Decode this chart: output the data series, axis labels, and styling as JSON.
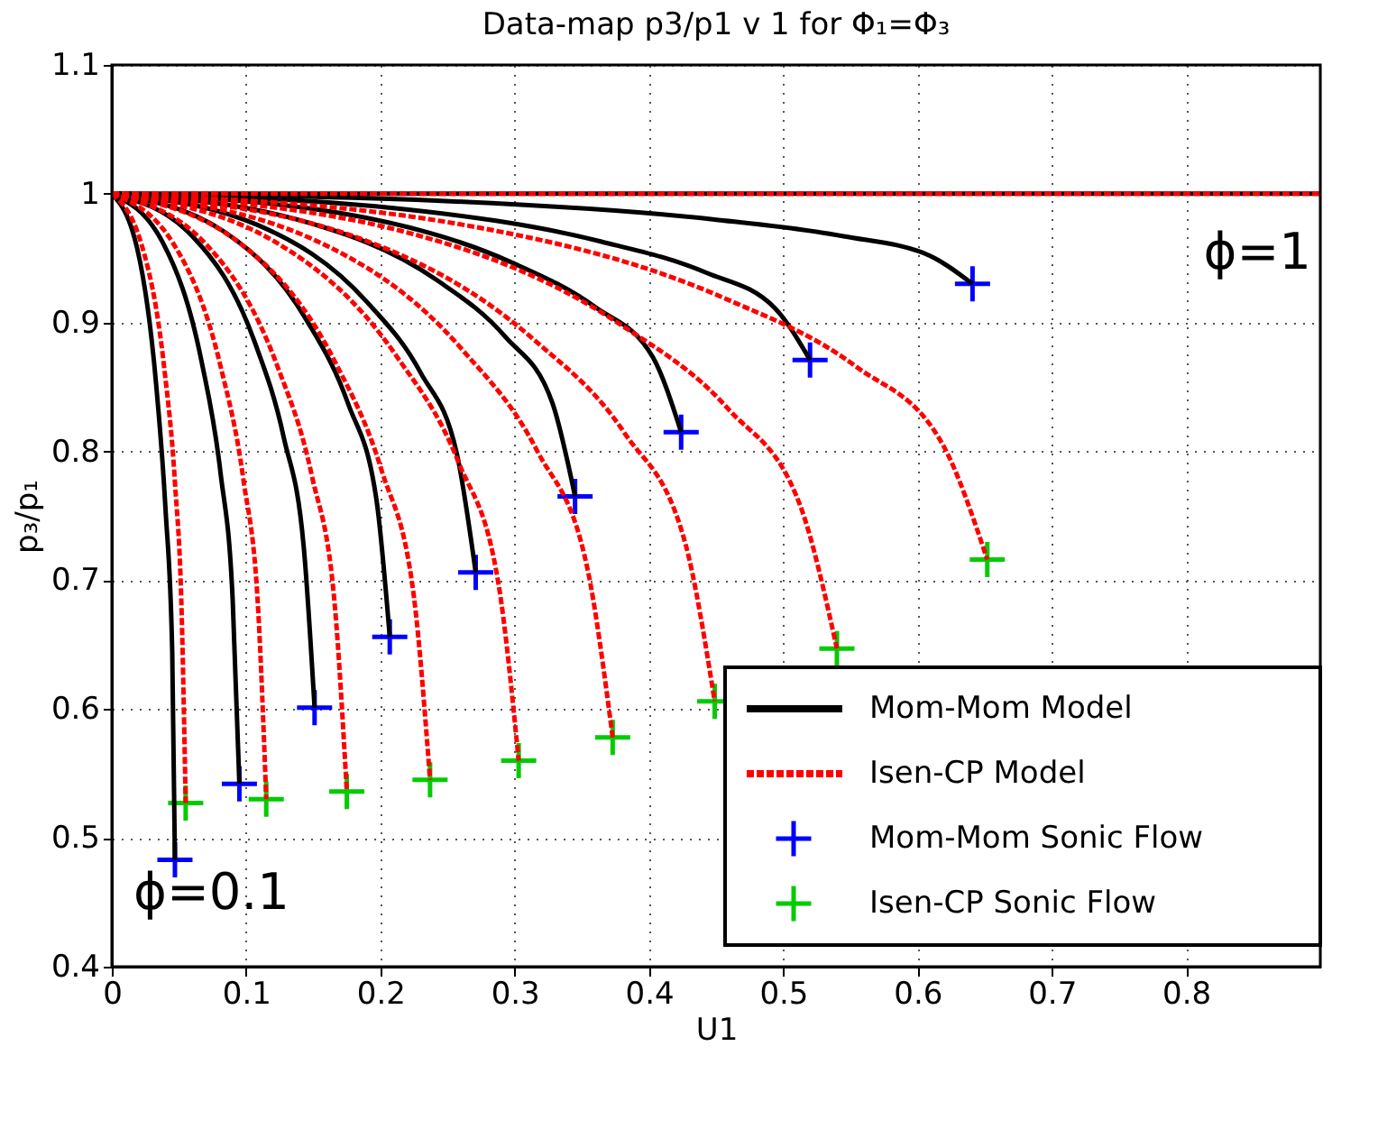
{
  "chart_data": {
    "type": "line",
    "title": "Data-map p3/p1 v 1 for Φ₁=Φ₃",
    "xlabel": "U1",
    "ylabel": "p₃/p₁",
    "xlim": [
      0,
      0.9
    ],
    "ylim": [
      0.4,
      1.1
    ],
    "xticks": [
      0,
      0.1,
      0.2,
      0.3,
      0.4,
      0.5,
      0.6,
      0.7,
      0.8
    ],
    "yticks": [
      0.4,
      0.5,
      0.6,
      0.7,
      0.8,
      0.9,
      1,
      1.1
    ],
    "grid": true,
    "legend": "bottom right",
    "annotations": [
      "ϕ=1",
      "ϕ=0.1"
    ],
    "series": [
      {
        "name": "Mom-Mom Model",
        "line_style": "solid",
        "color": "#000000",
        "x": [
          0,
          0.019,
          0.033,
          0.04,
          0.045,
          0.047
        ],
        "values": [
          1,
          0.957,
          0.852,
          0.755,
          0.644,
          0.483
        ]
      },
      {
        "type": "line",
        "line_style": "solid",
        "color": "#000000",
        "x": [
          0,
          0.038,
          0.067,
          0.081,
          0.09,
          0.095
        ],
        "values": [
          1,
          0.962,
          0.869,
          0.783,
          0.685,
          0.542
        ]
      },
      {
        "type": "line",
        "line_style": "solid",
        "color": "#000000",
        "x": [
          0,
          0.06,
          0.106,
          0.128,
          0.143,
          0.151
        ],
        "values": [
          1,
          0.967,
          0.886,
          0.811,
          0.725,
          0.601
        ]
      },
      {
        "type": "line",
        "line_style": "solid",
        "color": "#000000",
        "x": [
          0,
          0.083,
          0.145,
          0.176,
          0.197,
          0.207
        ],
        "values": [
          1,
          0.971,
          0.902,
          0.837,
          0.763,
          0.656
        ]
      },
      {
        "type": "line",
        "line_style": "solid",
        "color": "#000000",
        "x": [
          0,
          0.108,
          0.19,
          0.23,
          0.257,
          0.271
        ],
        "values": [
          1,
          0.976,
          0.916,
          0.861,
          0.798,
          0.706
        ]
      },
      {
        "type": "line",
        "line_style": "solid",
        "color": "#000000",
        "x": [
          0,
          0.138,
          0.242,
          0.293,
          0.328,
          0.345
        ],
        "values": [
          1,
          0.98,
          0.933,
          0.889,
          0.838,
          0.765
        ]
      },
      {
        "type": "line",
        "line_style": "solid",
        "color": "#000000",
        "x": [
          0,
          0.17,
          0.297,
          0.36,
          0.403,
          0.424
        ],
        "values": [
          1,
          0.985,
          0.947,
          0.912,
          0.873,
          0.815
        ]
      },
      {
        "type": "line",
        "line_style": "solid",
        "color": "#000000",
        "x": [
          0,
          0.208,
          0.364,
          0.442,
          0.494,
          0.52
        ],
        "values": [
          1,
          0.989,
          0.963,
          0.939,
          0.911,
          0.871
        ]
      },
      {
        "type": "line",
        "line_style": "solid",
        "color": "#000000",
        "x": [
          0,
          0.256,
          0.449,
          0.545,
          0.609,
          0.641
        ],
        "values": [
          1,
          0.994,
          0.98,
          0.967,
          0.952,
          0.93
        ]
      },
      {
        "type": "line",
        "line_style": "solid",
        "color": "#000000",
        "x": [
          0,
          0.9
        ],
        "values": [
          1,
          1
        ]
      },
      {
        "name": "Isen-CP Model",
        "line_style": "dashed",
        "color": "#ff0000",
        "x": [
          0,
          0.022,
          0.039,
          0.047,
          0.052,
          0.055
        ],
        "values": [
          1,
          0.961,
          0.865,
          0.776,
          0.675,
          0.527
        ]
      },
      {
        "type": "line",
        "line_style": "dashed",
        "color": "#ff0000",
        "x": [
          0,
          0.046,
          0.081,
          0.098,
          0.109,
          0.115
        ],
        "values": [
          1,
          0.961,
          0.866,
          0.778,
          0.677,
          0.53
        ]
      },
      {
        "type": "line",
        "line_style": "dashed",
        "color": "#ff0000",
        "x": [
          0,
          0.07,
          0.123,
          0.149,
          0.166,
          0.175
        ],
        "values": [
          1,
          0.961,
          0.867,
          0.781,
          0.681,
          0.536
        ]
      },
      {
        "type": "line",
        "line_style": "dashed",
        "color": "#ff0000",
        "x": [
          0,
          0.095,
          0.166,
          0.201,
          0.225,
          0.237
        ],
        "values": [
          1,
          0.962,
          0.87,
          0.785,
          0.687,
          0.545
        ]
      },
      {
        "type": "line",
        "line_style": "dashed",
        "color": "#ff0000",
        "x": [
          0,
          0.121,
          0.212,
          0.258,
          0.288,
          0.303
        ],
        "values": [
          1,
          0.963,
          0.874,
          0.792,
          0.697,
          0.56
        ]
      },
      {
        "type": "line",
        "line_style": "dashed",
        "color": "#ff0000",
        "x": [
          0,
          0.149,
          0.261,
          0.317,
          0.354,
          0.373
        ],
        "values": [
          1,
          0.965,
          0.879,
          0.8,
          0.71,
          0.578
        ]
      },
      {
        "type": "line",
        "line_style": "dashed",
        "color": "#ff0000",
        "x": [
          0,
          0.18,
          0.314,
          0.382,
          0.427,
          0.449
        ],
        "values": [
          1,
          0.967,
          0.887,
          0.814,
          0.729,
          0.606
        ]
      },
      {
        "type": "line",
        "line_style": "dashed",
        "color": "#ff0000",
        "x": [
          0,
          0.216,
          0.378,
          0.459,
          0.513,
          0.54
        ],
        "values": [
          1,
          0.971,
          0.899,
          0.833,
          0.757,
          0.647
        ]
      },
      {
        "type": "line",
        "line_style": "dashed",
        "color": "#ff0000",
        "x": [
          0,
          0.261,
          0.456,
          0.554,
          0.619,
          0.652
        ],
        "values": [
          1,
          0.976,
          0.919,
          0.866,
          0.805,
          0.716
        ]
      },
      {
        "type": "line",
        "line_style": "dashed",
        "color": "#ff0000",
        "x": [
          0,
          0.9
        ],
        "values": [
          1,
          1
        ]
      },
      {
        "name": "Mom-Mom Sonic Flow",
        "type": "scatter",
        "marker": "cross",
        "color": "#0000ff",
        "x": [
          0.047,
          0.095,
          0.151,
          0.207,
          0.271,
          0.345,
          0.424,
          0.52,
          0.641
        ],
        "values": [
          0.483,
          0.542,
          0.601,
          0.656,
          0.706,
          0.765,
          0.815,
          0.871,
          0.93
        ]
      },
      {
        "name": "Isen-CP Sonic Flow",
        "type": "scatter",
        "marker": "cross",
        "color": "#00cc00",
        "x": [
          0.055,
          0.115,
          0.175,
          0.237,
          0.303,
          0.373,
          0.449,
          0.54,
          0.652
        ],
        "values": [
          0.527,
          0.53,
          0.536,
          0.545,
          0.56,
          0.578,
          0.606,
          0.647,
          0.716
        ]
      }
    ]
  }
}
